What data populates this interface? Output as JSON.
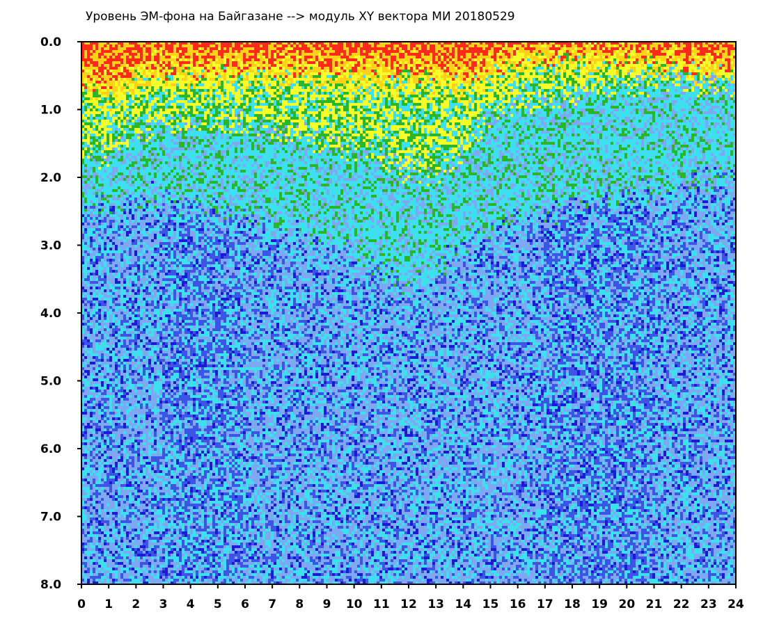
{
  "chart_data": {
    "type": "heatmap",
    "title": "Уровень ЭМ-фона на Байгазане   -->  модуль XY вектора МИ   20180529",
    "xlabel": "",
    "ylabel": "",
    "xlim": [
      0,
      24
    ],
    "ylim": [
      0,
      8.0
    ],
    "y_axis_inverted": true,
    "x_ticks": [
      "0",
      "1",
      "2",
      "3",
      "4",
      "5",
      "6",
      "7",
      "8",
      "9",
      "10",
      "11",
      "12",
      "13",
      "14",
      "15",
      "16",
      "17",
      "18",
      "19",
      "20",
      "21",
      "22",
      "23",
      "24"
    ],
    "y_ticks": [
      "0.0",
      "1.0",
      "2.0",
      "3.0",
      "4.0",
      "5.0",
      "6.0",
      "7.0",
      "8.0"
    ],
    "grid": false,
    "color_scale": [
      "#ff2a1a",
      "#ffd21a",
      "#f7ff2a",
      "#2bb52b",
      "#3ee0f0",
      "#7fa8f2",
      "#3d55e6",
      "#1a1ad8"
    ],
    "background_color": "#7b9be8",
    "band_boundary": {
      "hours": [
        0,
        1,
        2,
        3,
        4,
        5,
        6,
        7,
        8,
        9,
        10,
        11,
        12,
        13,
        14,
        15,
        16,
        17,
        18,
        19,
        20,
        21,
        22,
        23,
        24
      ],
      "red_top": [
        0.5,
        0.6,
        0.4,
        0.3,
        0.35,
        0.3,
        0.35,
        0.3,
        0.3,
        0.35,
        0.35,
        0.35,
        0.35,
        0.4,
        0.5,
        0.3,
        0.2,
        0.15,
        0.15,
        0.15,
        0.15,
        0.2,
        0.25,
        0.3,
        0.35
      ],
      "yellow_green": [
        1.8,
        1.6,
        1.3,
        1.2,
        1.2,
        1.2,
        1.2,
        1.3,
        1.4,
        1.5,
        1.6,
        1.7,
        1.9,
        2.0,
        1.6,
        1.0,
        0.9,
        0.9,
        0.8,
        0.7,
        0.7,
        0.6,
        0.6,
        0.6,
        0.6
      ],
      "cyan_blue": [
        2.5,
        2.4,
        2.3,
        2.3,
        2.4,
        2.5,
        2.6,
        2.7,
        2.9,
        3.0,
        3.2,
        3.4,
        3.6,
        3.4,
        3.0,
        2.8,
        2.6,
        2.5,
        2.4,
        2.4,
        2.3,
        2.2,
        2.1,
        2.0,
        2.0
      ]
    }
  }
}
